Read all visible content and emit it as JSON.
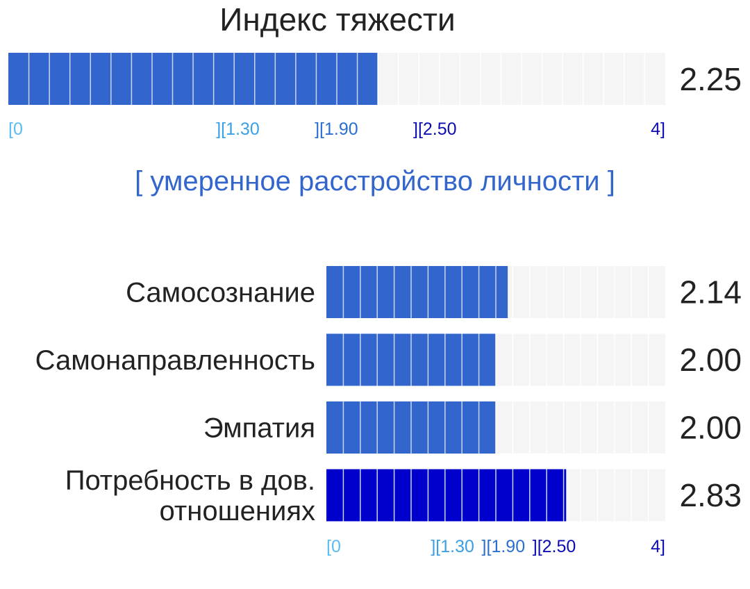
{
  "chart_data": [
    {
      "type": "bar",
      "title": "Индекс тяжести",
      "categories": [
        ""
      ],
      "values": [
        2.25
      ],
      "value_labels": [
        "2.25"
      ],
      "xlim": [
        0,
        4
      ],
      "segments_per_unit": 8,
      "scale_ticks": [
        {
          "label": "[0",
          "value": 0,
          "color": "#5bbcf0"
        },
        {
          "label": "][1.30",
          "value": 1.3,
          "color": "#3aa0e6"
        },
        {
          "label": "][1.90",
          "value": 1.9,
          "color": "#2a6fd0"
        },
        {
          "label": "][2.50",
          "value": 2.5,
          "color": "#0d0db0"
        },
        {
          "label": "4]",
          "value": 4,
          "color": "#0d0db0"
        }
      ],
      "interpretation": "[ умеренное расстройство личности ]",
      "bar_colors": [
        "#3366cc"
      ]
    },
    {
      "type": "bar",
      "categories": [
        "Самосознание",
        "Самонаправленность",
        "Эмпатия",
        "Потребность в дов. отношениях"
      ],
      "category_lines": [
        [
          "Самосознание"
        ],
        [
          "Самонаправленность"
        ],
        [
          "Эмпатия"
        ],
        [
          "Потребность в дов.",
          "отношениях"
        ]
      ],
      "values": [
        2.14,
        2.0,
        2.0,
        2.83
      ],
      "value_labels": [
        "2.14",
        "2.00",
        "2.00",
        "2.83"
      ],
      "xlim": [
        0,
        4
      ],
      "segments_per_unit": 5,
      "scale_ticks": [
        {
          "label": "[0",
          "value": 0,
          "color": "#5bbcf0"
        },
        {
          "label": "][1.30",
          "value": 1.3,
          "color": "#3aa0e6"
        },
        {
          "label": "][1.90",
          "value": 1.9,
          "color": "#2a6fd0"
        },
        {
          "label": "][2.50",
          "value": 2.5,
          "color": "#0d0db0"
        },
        {
          "label": "4]",
          "value": 4,
          "color": "#0d0db0"
        }
      ],
      "bar_colors": [
        "#3366cc",
        "#3366cc",
        "#3366cc",
        "#0000cc"
      ]
    }
  ],
  "colors": {
    "track": "#f5f5f5",
    "text": "#222222",
    "interpretation": "#3366cc"
  }
}
